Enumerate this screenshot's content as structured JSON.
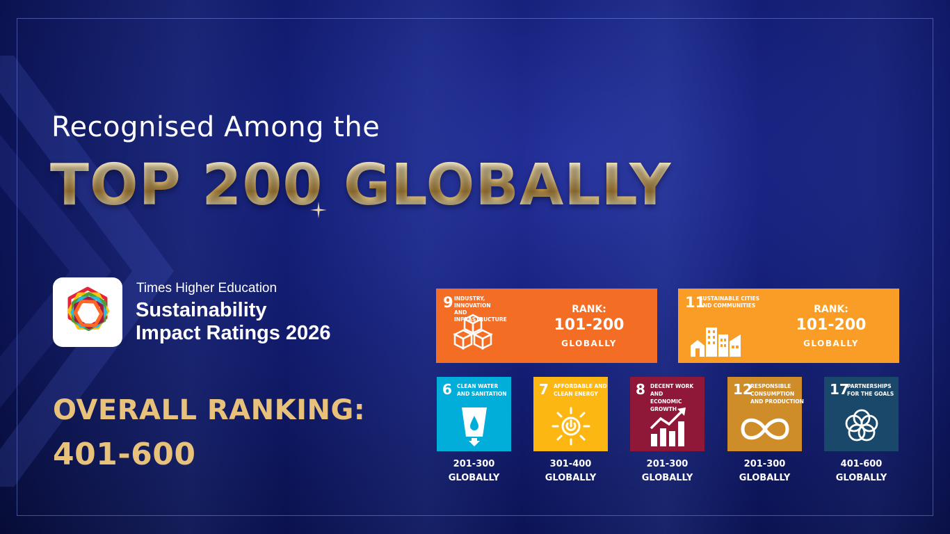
{
  "heading": {
    "line1": "Recognised Among the",
    "line2": "TOP 200 GLOBALLY"
  },
  "badge": {
    "logo_icon": "the-impact-logo-icon",
    "publisher": "Times Higher Education",
    "title_line1": "Sustainability",
    "title_line2": "Impact Ratings 2026"
  },
  "overall": {
    "label": "OVERALL RANKING:",
    "value": "401-600"
  },
  "featured_goals": [
    {
      "number": "9",
      "name_line1": "INDUSTRY, INNOVATION",
      "name_line2": "AND INFRASTRUCTURE",
      "color": "#f36d25",
      "icon": "cubes-icon",
      "rank_label": "RANK:",
      "rank_value": "101-200",
      "rank_sub": "GLOBALLY"
    },
    {
      "number": "11",
      "name_line1": "SUSTAINABLE CITIES",
      "name_line2": "AND COMMUNITIES",
      "color": "#f99d26",
      "icon": "city-buildings-icon",
      "rank_label": "RANK:",
      "rank_value": "101-200",
      "rank_sub": "GLOBALLY"
    }
  ],
  "goals": [
    {
      "number": "6",
      "name_line1": "CLEAN WATER",
      "name_line2": "AND SANITATION",
      "name_line3": "",
      "color": "#00aed9",
      "icon": "water-glass-icon",
      "rank": "201-300",
      "rank_sub": "GLOBALLY"
    },
    {
      "number": "7",
      "name_line1": "AFFORDABLE AND",
      "name_line2": "CLEAN ENERGY",
      "name_line3": "",
      "color": "#fdb713",
      "icon": "sun-power-icon",
      "rank": "301-400",
      "rank_sub": "GLOBALLY"
    },
    {
      "number": "8",
      "name_line1": "DECENT WORK AND",
      "name_line2": "ECONOMIC GROWTH",
      "name_line3": "",
      "color": "#8f1838",
      "icon": "growth-chart-icon",
      "rank": "201-300",
      "rank_sub": "GLOBALLY"
    },
    {
      "number": "12",
      "name_line1": "RESPONSIBLE",
      "name_line2": "CONSUMPTION",
      "name_line3": "AND PRODUCTION",
      "color": "#cf8d2a",
      "icon": "infinity-icon",
      "rank": "201-300",
      "rank_sub": "GLOBALLY"
    },
    {
      "number": "17",
      "name_line1": "PARTNERSHIPS",
      "name_line2": "FOR THE GOALS",
      "name_line3": "",
      "color": "#19486a",
      "icon": "flower-rings-icon",
      "rank": "401-600",
      "rank_sub": "GLOBALLY"
    }
  ]
}
